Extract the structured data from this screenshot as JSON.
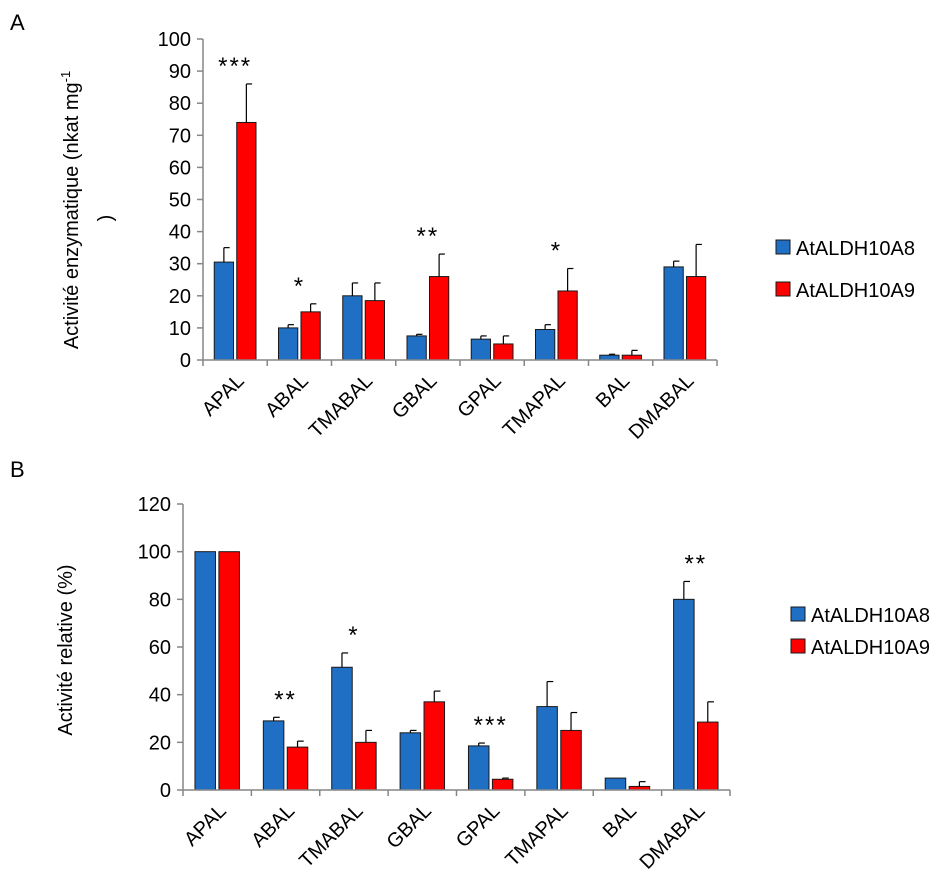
{
  "chart_data": [
    {
      "panel": "A",
      "type": "bar",
      "ylabel": "Activité enzymatique (nkat mg",
      "ylabel_sup": "-1",
      "ylabel_cont": ")",
      "ylim": [
        0,
        100
      ],
      "yticks": [
        0,
        10,
        20,
        30,
        40,
        50,
        60,
        70,
        80,
        90,
        100
      ],
      "categories": [
        "APAL",
        "ABAL",
        "TMABAL",
        "GBAL",
        "GPAL",
        "TMAPAL",
        "BAL",
        "DMABAL"
      ],
      "series": [
        {
          "name": "AtALDH10A8",
          "color": "#1f6fc4",
          "values": [
            30.5,
            10,
            20,
            7.5,
            6.5,
            9.5,
            1.5,
            29
          ],
          "errors": [
            4.5,
            1,
            4,
            0.5,
            1,
            1.5,
            0.3,
            1.8
          ]
        },
        {
          "name": "AtALDH10A9",
          "color": "#ff0000",
          "values": [
            74,
            15,
            18.5,
            26,
            5,
            21.5,
            1.5,
            26
          ],
          "errors": [
            12,
            2.5,
            5.5,
            7,
            2.5,
            7,
            1.5,
            10
          ]
        }
      ],
      "significance": [
        "***",
        "*",
        "",
        "**",
        "",
        "*",
        "",
        ""
      ],
      "grid": false,
      "legend": "right"
    },
    {
      "panel": "B",
      "type": "bar",
      "ylabel": "Activité relative (%)",
      "ylim": [
        0,
        120
      ],
      "yticks": [
        0,
        20,
        40,
        60,
        80,
        100,
        120
      ],
      "categories": [
        "APAL",
        "ABAL",
        "TMABAL",
        "GBAL",
        "GPAL",
        "TMAPAL",
        "BAL",
        "DMABAL"
      ],
      "series": [
        {
          "name": "AtALDH10A8",
          "color": "#1f6fc4",
          "values": [
            100,
            29,
            51.5,
            24,
            18.5,
            35,
            5,
            80
          ],
          "errors": [
            0,
            1.5,
            6,
            1,
            1.2,
            10.5,
            0,
            7.5
          ]
        },
        {
          "name": "AtALDH10A9",
          "color": "#ff0000",
          "values": [
            100,
            18,
            20,
            37,
            4.5,
            25,
            1.5,
            28.5
          ],
          "errors": [
            0,
            2.5,
            5,
            4.5,
            0.5,
            7.5,
            2,
            8.5
          ]
        }
      ],
      "significance": [
        "",
        "**",
        "*",
        "",
        "***",
        "",
        "",
        "**"
      ],
      "grid": false,
      "legend": "right"
    }
  ]
}
